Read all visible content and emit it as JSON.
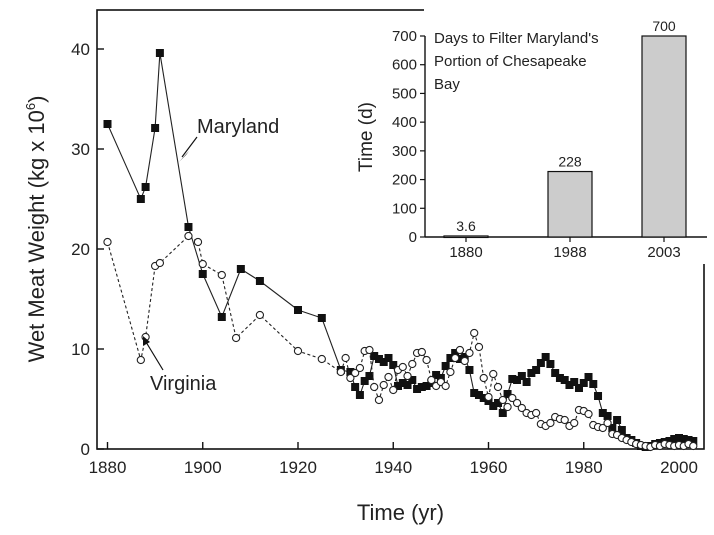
{
  "chart_data": [
    {
      "type": "line",
      "xlabel": "Time (yr)",
      "ylabel_main": "Wet Meat Weight (kg x 10",
      "ylabel_sup": "6",
      "ylabel_close": ")",
      "xlim": [
        1878,
        2005
      ],
      "ylim": [
        0,
        43
      ],
      "xticks": [
        1880,
        1900,
        1920,
        1940,
        1960,
        1980,
        2000
      ],
      "yticks": [
        0,
        10,
        20,
        30,
        40
      ],
      "annotations": [
        {
          "text": "Maryland",
          "series": "Maryland"
        },
        {
          "text": "Virginia",
          "series": "Virginia"
        }
      ],
      "series": [
        {
          "name": "Maryland",
          "marker": "filled-square",
          "line": "solid",
          "points": [
            [
              1880,
              32.5
            ],
            [
              1887,
              25.0
            ],
            [
              1888,
              26.2
            ],
            [
              1890,
              32.1
            ],
            [
              1891,
              39.6
            ],
            [
              1897,
              22.2
            ],
            [
              1900,
              17.5
            ],
            [
              1904,
              13.2
            ],
            [
              1908,
              18.0
            ],
            [
              1912,
              16.8
            ],
            [
              1920,
              13.9
            ],
            [
              1925,
              13.1
            ],
            [
              1929,
              7.9
            ],
            [
              1931,
              7.7
            ],
            [
              1932,
              6.2
            ],
            [
              1933,
              5.4
            ],
            [
              1934,
              6.8
            ],
            [
              1935,
              7.3
            ],
            [
              1936,
              9.3
            ],
            [
              1937,
              9.0
            ],
            [
              1938,
              8.7
            ],
            [
              1939,
              9.1
            ],
            [
              1940,
              8.4
            ],
            [
              1941,
              6.3
            ],
            [
              1942,
              6.6
            ],
            [
              1943,
              6.4
            ],
            [
              1944,
              6.9
            ],
            [
              1945,
              6.0
            ],
            [
              1946,
              6.2
            ],
            [
              1947,
              6.3
            ],
            [
              1948,
              6.6
            ],
            [
              1949,
              7.4
            ],
            [
              1950,
              7.1
            ],
            [
              1951,
              8.3
            ],
            [
              1952,
              9.1
            ],
            [
              1953,
              9.6
            ],
            [
              1954,
              9.0
            ],
            [
              1955,
              9.2
            ],
            [
              1956,
              7.9
            ],
            [
              1957,
              5.6
            ],
            [
              1958,
              5.4
            ],
            [
              1959,
              5.1
            ],
            [
              1960,
              4.8
            ],
            [
              1961,
              4.3
            ],
            [
              1962,
              4.6
            ],
            [
              1963,
              3.6
            ],
            [
              1964,
              5.5
            ],
            [
              1965,
              7.0
            ],
            [
              1966,
              6.9
            ],
            [
              1967,
              7.3
            ],
            [
              1968,
              6.7
            ],
            [
              1969,
              7.6
            ],
            [
              1970,
              7.9
            ],
            [
              1971,
              8.6
            ],
            [
              1972,
              9.2
            ],
            [
              1973,
              8.5
            ],
            [
              1974,
              7.6
            ],
            [
              1975,
              7.1
            ],
            [
              1976,
              6.9
            ],
            [
              1977,
              6.4
            ],
            [
              1978,
              6.7
            ],
            [
              1979,
              6.1
            ],
            [
              1980,
              6.6
            ],
            [
              1981,
              7.2
            ],
            [
              1982,
              6.5
            ],
            [
              1983,
              5.3
            ],
            [
              1984,
              3.6
            ],
            [
              1985,
              3.3
            ],
            [
              1986,
              2.1
            ],
            [
              1987,
              2.9
            ],
            [
              1988,
              1.9
            ],
            [
              1989,
              1.1
            ],
            [
              1990,
              0.9
            ],
            [
              1991,
              0.6
            ],
            [
              1992,
              0.3
            ],
            [
              1993,
              0.2
            ],
            [
              1994,
              0.3
            ],
            [
              1995,
              0.5
            ],
            [
              1996,
              0.6
            ],
            [
              1997,
              0.7
            ],
            [
              1998,
              0.8
            ],
            [
              1999,
              1.0
            ],
            [
              2000,
              1.1
            ],
            [
              2001,
              1.0
            ],
            [
              2002,
              0.9
            ],
            [
              2003,
              0.8
            ]
          ]
        },
        {
          "name": "Virginia",
          "marker": "open-circle",
          "line": "dashed",
          "points": [
            [
              1880,
              20.7
            ],
            [
              1887,
              8.9
            ],
            [
              1888,
              11.2
            ],
            [
              1890,
              18.3
            ],
            [
              1891,
              18.6
            ],
            [
              1897,
              21.3
            ],
            [
              1899,
              20.7
            ],
            [
              1900,
              18.5
            ],
            [
              1904,
              17.4
            ],
            [
              1907,
              11.1
            ],
            [
              1912,
              13.4
            ],
            [
              1920,
              9.8
            ],
            [
              1925,
              9.0
            ],
            [
              1929,
              7.7
            ],
            [
              1930,
              9.1
            ],
            [
              1931,
              7.1
            ],
            [
              1932,
              7.6
            ],
            [
              1933,
              8.1
            ],
            [
              1934,
              9.8
            ],
            [
              1935,
              9.9
            ],
            [
              1936,
              6.2
            ],
            [
              1937,
              4.9
            ],
            [
              1938,
              6.4
            ],
            [
              1939,
              7.2
            ],
            [
              1940,
              5.9
            ],
            [
              1941,
              7.9
            ],
            [
              1942,
              8.2
            ],
            [
              1943,
              7.3
            ],
            [
              1944,
              8.5
            ],
            [
              1945,
              9.6
            ],
            [
              1946,
              9.7
            ],
            [
              1947,
              8.9
            ],
            [
              1948,
              6.9
            ],
            [
              1949,
              6.3
            ],
            [
              1950,
              6.7
            ],
            [
              1951,
              6.3
            ],
            [
              1952,
              7.7
            ],
            [
              1953,
              9.1
            ],
            [
              1954,
              9.9
            ],
            [
              1955,
              8.8
            ],
            [
              1956,
              9.6
            ],
            [
              1957,
              11.6
            ],
            [
              1958,
              10.2
            ],
            [
              1959,
              7.1
            ],
            [
              1960,
              5.2
            ],
            [
              1961,
              7.5
            ],
            [
              1962,
              6.2
            ],
            [
              1963,
              4.9
            ],
            [
              1964,
              4.2
            ],
            [
              1965,
              5.1
            ],
            [
              1966,
              4.6
            ],
            [
              1967,
              4.1
            ],
            [
              1968,
              3.6
            ],
            [
              1969,
              3.4
            ],
            [
              1970,
              3.6
            ],
            [
              1971,
              2.5
            ],
            [
              1972,
              2.3
            ],
            [
              1973,
              2.6
            ],
            [
              1974,
              3.2
            ],
            [
              1975,
              3.0
            ],
            [
              1976,
              2.9
            ],
            [
              1977,
              2.3
            ],
            [
              1978,
              2.6
            ],
            [
              1979,
              3.9
            ],
            [
              1980,
              3.8
            ],
            [
              1981,
              3.5
            ],
            [
              1982,
              2.4
            ],
            [
              1983,
              2.2
            ],
            [
              1984,
              2.1
            ],
            [
              1985,
              2.6
            ],
            [
              1986,
              1.5
            ],
            [
              1987,
              1.4
            ],
            [
              1988,
              1.1
            ],
            [
              1989,
              0.9
            ],
            [
              1990,
              0.7
            ],
            [
              1991,
              0.5
            ],
            [
              1992,
              0.4
            ],
            [
              1993,
              0.3
            ],
            [
              1994,
              0.2
            ],
            [
              1995,
              0.4
            ],
            [
              1996,
              0.3
            ],
            [
              1997,
              0.5
            ],
            [
              1998,
              0.4
            ],
            [
              1999,
              0.3
            ],
            [
              2000,
              0.4
            ],
            [
              2001,
              0.3
            ],
            [
              2002,
              0.5
            ],
            [
              2003,
              0.3
            ]
          ]
        }
      ]
    },
    {
      "type": "bar",
      "title_lines": [
        "Days to Filter Maryland's",
        "Portion of Chesapeake",
        "Bay"
      ],
      "ylabel": "Time (d)",
      "categories": [
        "1880",
        "1988",
        "2003"
      ],
      "values": [
        3.6,
        228,
        700
      ],
      "value_labels": [
        "3.6",
        "228",
        "700"
      ],
      "ylim": [
        0,
        700
      ],
      "yticks": [
        0,
        100,
        200,
        300,
        400,
        500,
        600,
        700
      ],
      "bar_color": "#cccccc"
    }
  ]
}
